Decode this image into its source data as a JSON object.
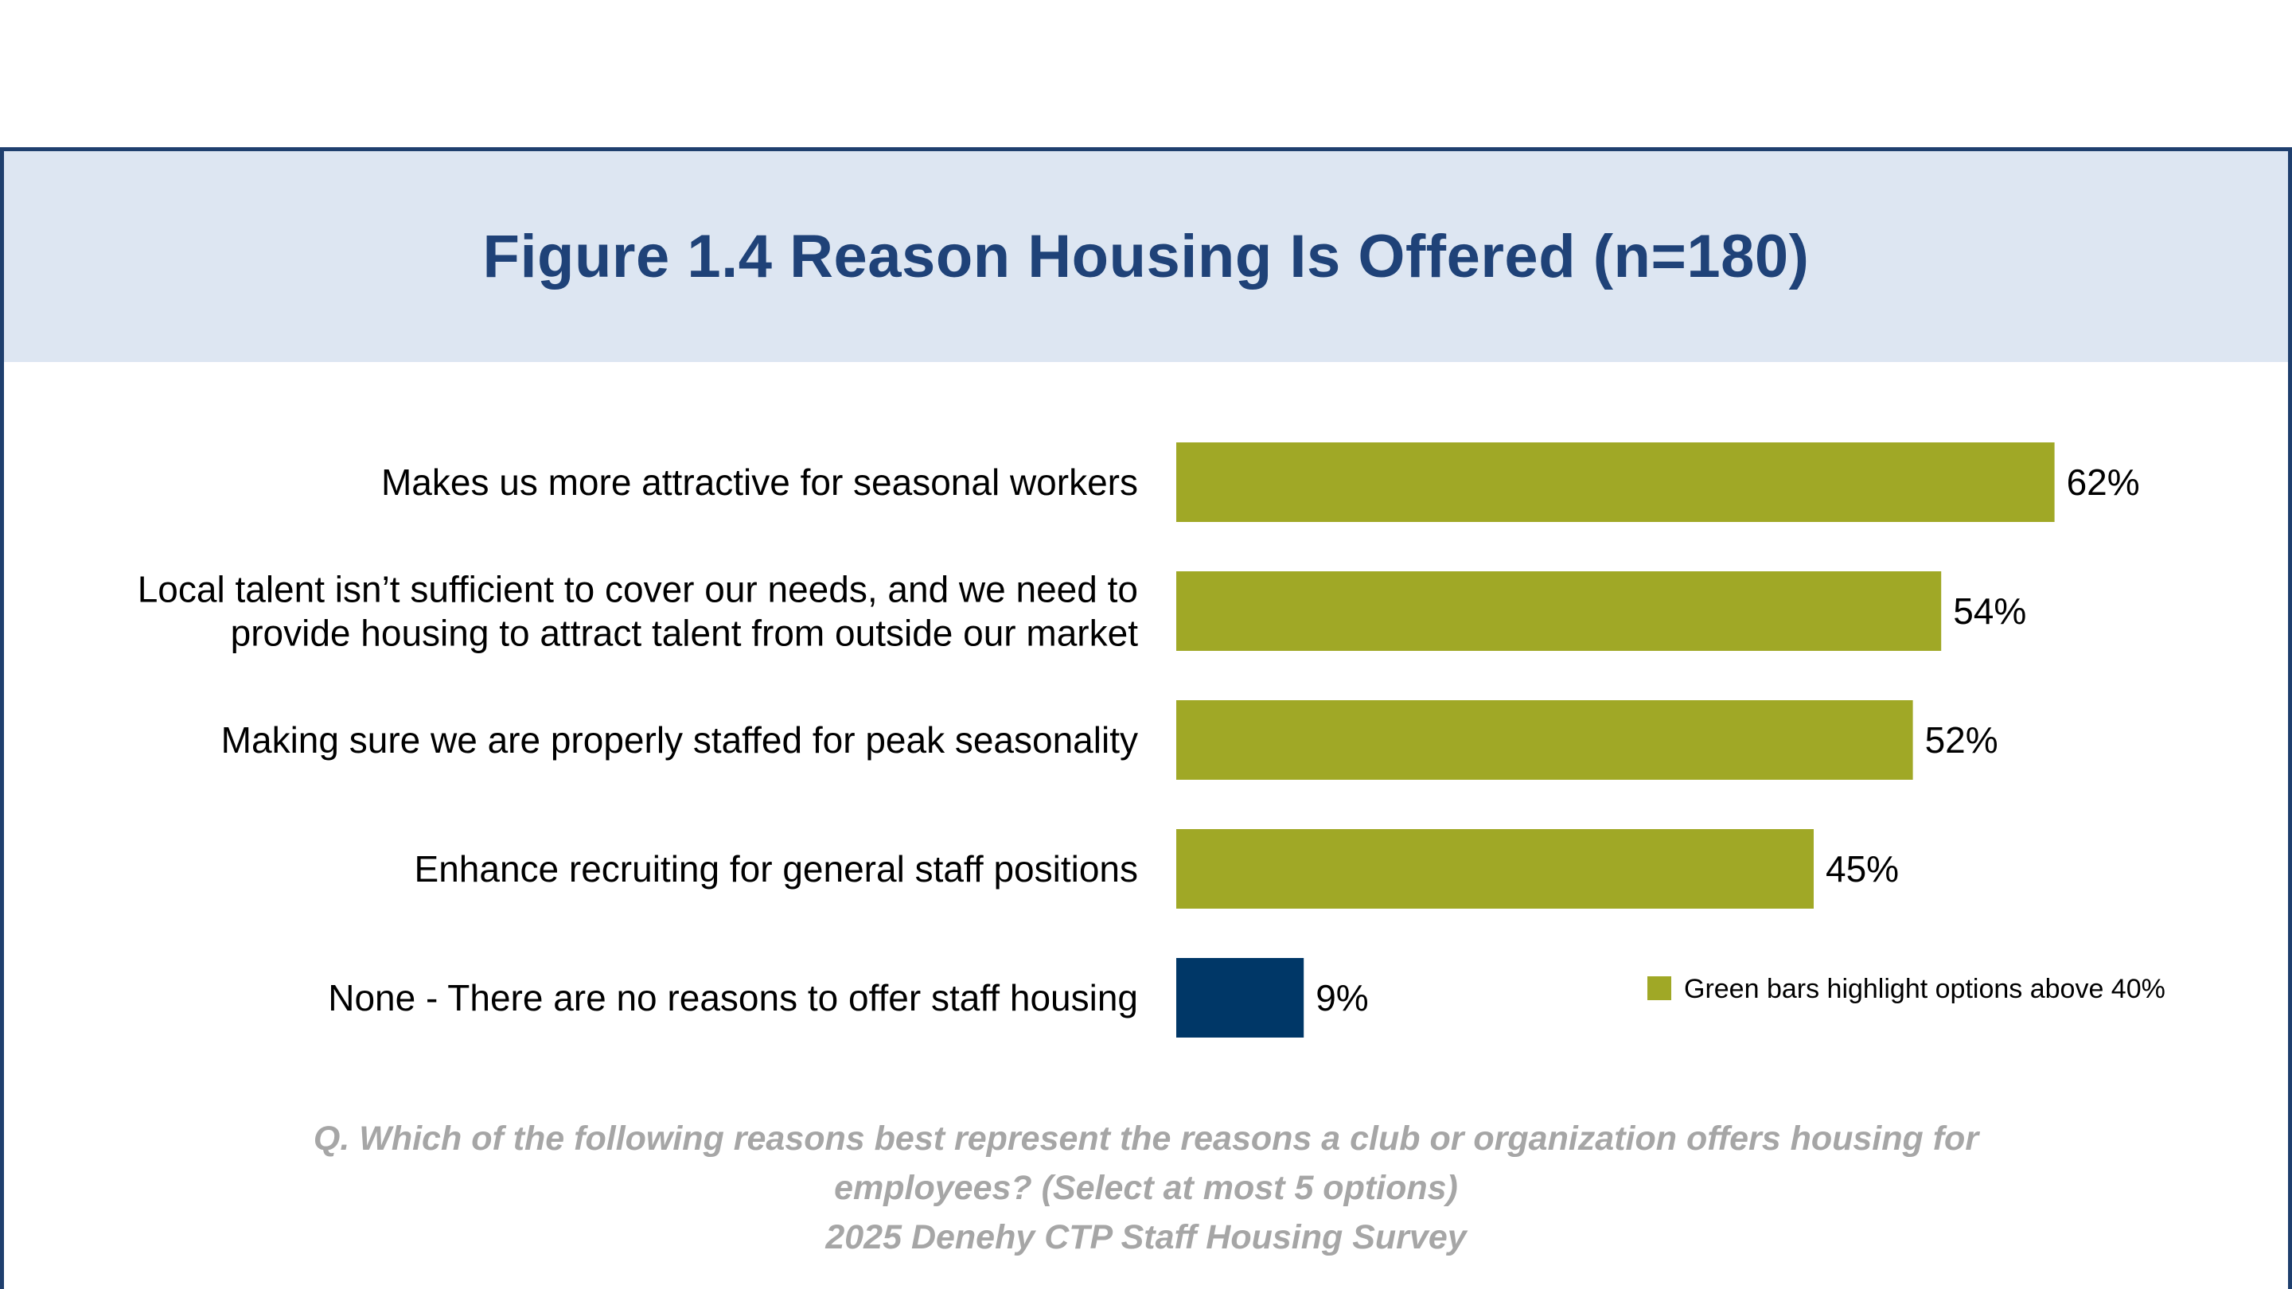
{
  "title": "Figure 1.4 Reason Housing Is Offered (n=180)",
  "colors": {
    "highlight": "#a0a826",
    "base": "#003767",
    "header_bg": "#dde6f2",
    "title": "#1f4278",
    "border": "#1f3f6e"
  },
  "legend": {
    "label": "Green bars highlight options above 40%"
  },
  "footnote": {
    "line1": "Q. Which of the following reasons best represent the reasons a club or organization offers housing for",
    "line2": "employees? (Select at most 5 options)",
    "line3": "2025 Denehy CTP Staff Housing Survey"
  },
  "chart_data": {
    "type": "bar",
    "orientation": "horizontal",
    "title": "Figure 1.4 Reason Housing Is Offered (n=180)",
    "categories": [
      [
        "Makes us more attractive for seasonal workers"
      ],
      [
        "Local talent isn’t sufficient to cover our needs, and we need to",
        "provide housing to attract talent from outside our market"
      ],
      [
        "Making sure we are properly staffed for peak seasonality"
      ],
      [
        "Enhance recruiting for general staff positions"
      ],
      [
        "None - There are no reasons to offer staff housing"
      ]
    ],
    "values": [
      62,
      54,
      52,
      45,
      9
    ],
    "value_labels": [
      "62%",
      "54%",
      "52%",
      "45%",
      "9%"
    ],
    "highlight_threshold": 40,
    "xlim": [
      0,
      100
    ],
    "grid": false,
    "legend_position": "bottom-right"
  }
}
